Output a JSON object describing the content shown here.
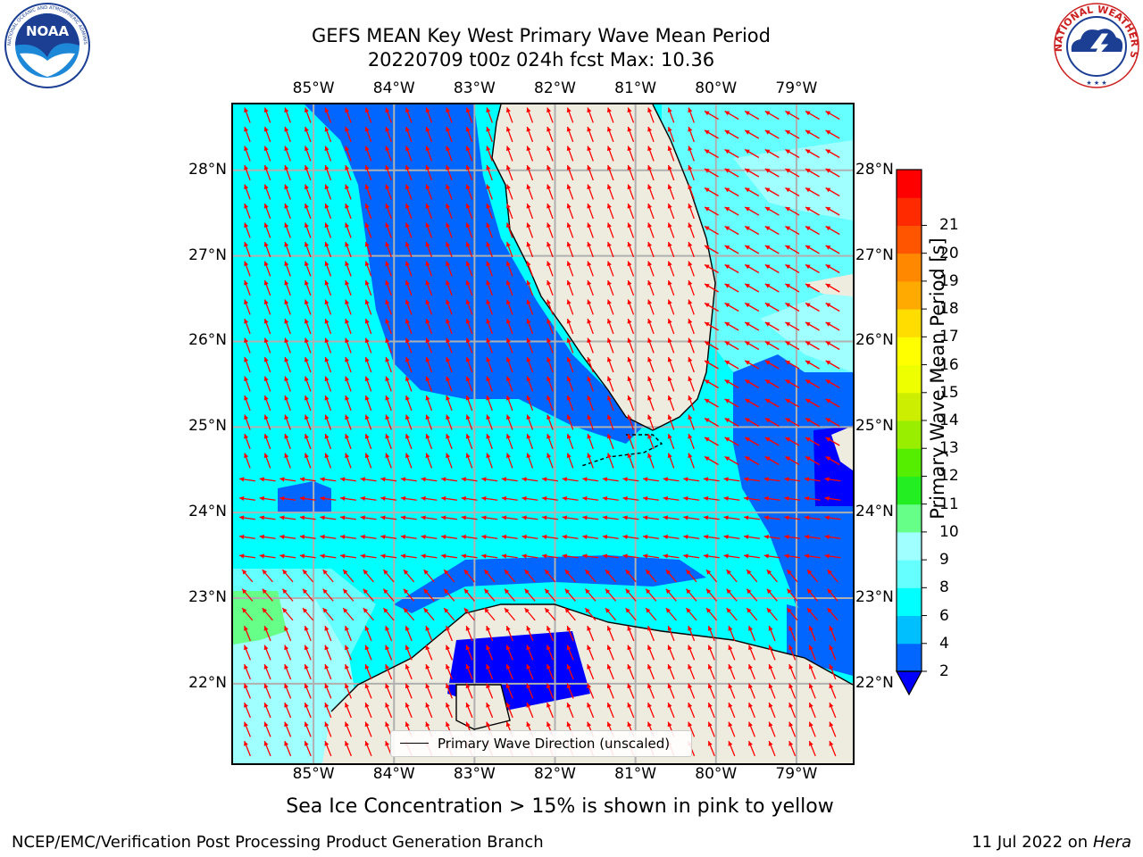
{
  "title": {
    "line1": "GEFS MEAN Key West Primary Wave Mean Period",
    "line2": "20220709 t00z 024h fcst   Max: 10.36"
  },
  "logos": {
    "noaa": {
      "text": "NOAA",
      "ring_text": "NATIONAL OCEANIC AND ATMOSPHERIC ADMINISTRATION · U.S. DEPARTMENT OF COMMERCE",
      "icon": "noaa-logo-icon"
    },
    "nws": {
      "ring_text": "NATIONAL WEATHER SERVICE",
      "icon": "nws-logo-icon"
    }
  },
  "map": {
    "lon_ticks": [
      "85°W",
      "84°W",
      "83°W",
      "82°W",
      "81°W",
      "80°W",
      "79°W"
    ],
    "lat_ticks": [
      "28°N",
      "27°N",
      "26°N",
      "25°N",
      "24°N",
      "23°N",
      "22°N"
    ],
    "lon_values": [
      -85,
      -84,
      -83,
      -82,
      -81,
      -80,
      -79
    ],
    "lat_values": [
      28,
      27,
      26,
      25,
      24,
      23,
      22
    ],
    "lon_range": [
      -86,
      -78.3
    ],
    "lat_range": [
      21.07,
      28.77
    ],
    "grid": true,
    "legend_label": "Primary Wave Direction (unscaled)",
    "legend_placement": "bottom-center",
    "arrow_color": "#ff0000",
    "land_color": "#eeecde",
    "arrow_direction": "predominantly northwest-pointing in the Gulf, westward in the Florida Straits"
  },
  "colorbar": {
    "title": "Primary Wave Mean Period [s]",
    "tick_labels": [
      "2",
      "4",
      "6",
      "8",
      "9",
      "10",
      "11",
      "12",
      "13",
      "14",
      "15",
      "16",
      "17",
      "18",
      "19",
      "20",
      "21"
    ],
    "colors": [
      "#0066ff",
      "#00bfff",
      "#00ffff",
      "#66ffff",
      "#a0ffff",
      "#66ff88",
      "#22ee22",
      "#55ee00",
      "#99ee00",
      "#ccee00",
      "#eeff00",
      "#ffff00",
      "#ffdd00",
      "#ffaa00",
      "#ff8800",
      "#ff5500",
      "#ff2a00",
      "#ff0000"
    ],
    "under_color": "#0000ff",
    "extend": "min"
  },
  "subtitle": "Sea Ice Concentration > 15% is shown in pink to yellow",
  "footer": {
    "left": "NCEP/EMC/Verification Post Processing Product Generation Branch",
    "right_prefix": "11 Jul 2022 on ",
    "right_machine": "Hera"
  }
}
